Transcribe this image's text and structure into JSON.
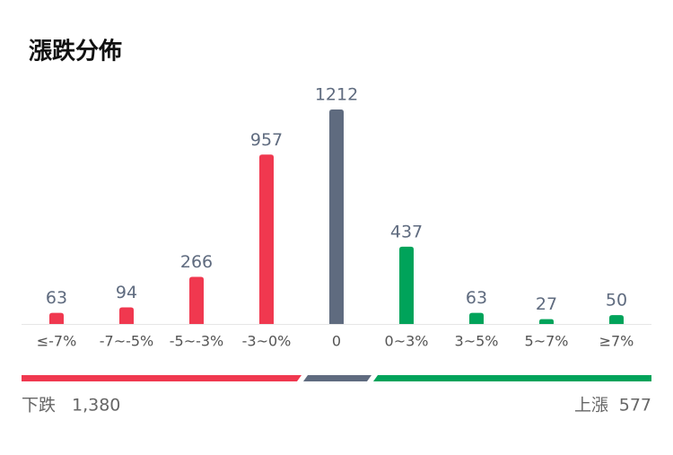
{
  "chart_data": {
    "type": "bar",
    "title": "漲跌分佈",
    "categories": [
      "≤-7%",
      "-7~-5%",
      "-5~-3%",
      "-3~0%",
      "0",
      "0~3%",
      "3~5%",
      "5~7%",
      "≥7%"
    ],
    "values": [
      63,
      94,
      266,
      957,
      1212,
      437,
      63,
      27,
      50
    ],
    "colors": [
      "#f0384f",
      "#f0384f",
      "#f0384f",
      "#f0384f",
      "#5f6b7f",
      "#00a35a",
      "#00a35a",
      "#00a35a",
      "#00a35a"
    ]
  },
  "summary": {
    "down_label": "下跌",
    "down_total": "1,380",
    "up_label": "上漲",
    "up_total": "577"
  }
}
